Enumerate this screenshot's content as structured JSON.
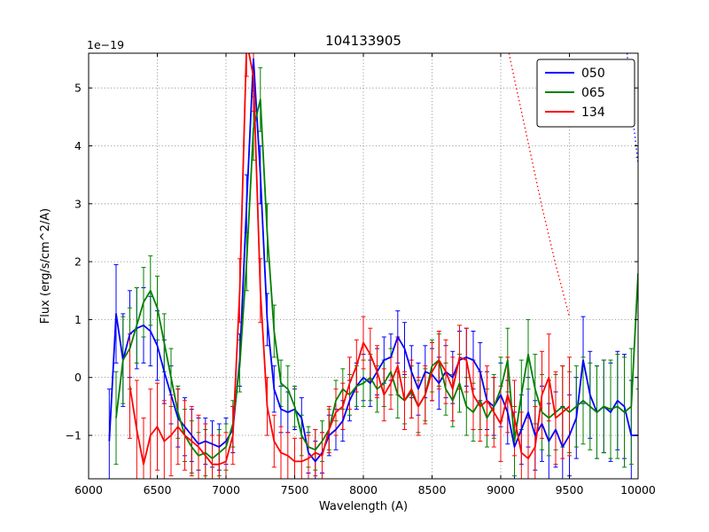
{
  "chart_data": {
    "type": "line",
    "title": "104133905",
    "xlabel": "Wavelength (A)",
    "ylabel": "Flux (erg/s/cm^2/A)",
    "offset_text": "1e−19",
    "y_scale_factor": "1e-19",
    "xlim": [
      6000,
      10000
    ],
    "ylim": [
      -1.75,
      5.6
    ],
    "grid": true,
    "legend_position": "upper right",
    "legend_entries": [
      "050",
      "065",
      "134"
    ],
    "xticks": [
      6000,
      6500,
      7000,
      7500,
      8000,
      8500,
      9000,
      9500,
      10000
    ],
    "xtick_labels": [
      "6000",
      "6500",
      "7000",
      "7500",
      "8000",
      "8500",
      "9000",
      "9500",
      "10000"
    ],
    "yticks": [
      -1,
      0,
      1,
      2,
      3,
      4,
      5
    ],
    "ytick_labels": [
      "−1",
      "0",
      "1",
      "2",
      "3",
      "4",
      "5"
    ],
    "series": [
      {
        "name": "050",
        "color": "#0000ff",
        "style": "solid",
        "in_legend": true,
        "x": [
          6150,
          6200,
          6250,
          6300,
          6350,
          6400,
          6450,
          6500,
          6550,
          6600,
          6650,
          6700,
          6750,
          6800,
          6850,
          6900,
          6950,
          7000,
          7050,
          7100,
          7150,
          7200,
          7250,
          7300,
          7350,
          7400,
          7450,
          7500,
          7550,
          7600,
          7650,
          7700,
          7750,
          7800,
          7850,
          7900,
          7950,
          8000,
          8050,
          8100,
          8150,
          8200,
          8250,
          8300,
          8350,
          8400,
          8450,
          8500,
          8550,
          8600,
          8650,
          8700,
          8750,
          8800,
          8850,
          8900,
          8950,
          9000,
          9050,
          9100,
          9150,
          9200,
          9250,
          9300,
          9350,
          9400,
          9450,
          9500,
          9550,
          9600,
          9650,
          9700,
          9750,
          9800,
          9850,
          9900,
          9950,
          10000
        ],
        "y": [
          -1.1,
          1.1,
          0.3,
          0.75,
          0.85,
          0.9,
          0.8,
          0.55,
          0.1,
          -0.3,
          -0.7,
          -0.85,
          -1.0,
          -1.15,
          -1.1,
          -1.15,
          -1.2,
          -1.1,
          -0.9,
          0.3,
          3.0,
          5.5,
          3.5,
          1.0,
          -0.2,
          -0.55,
          -0.6,
          -0.55,
          -0.7,
          -1.3,
          -1.45,
          -1.3,
          -1.0,
          -0.9,
          -0.75,
          -0.4,
          -0.15,
          0.0,
          -0.1,
          0.1,
          0.3,
          0.35,
          0.7,
          0.5,
          0.1,
          -0.2,
          0.1,
          0.05,
          -0.1,
          0.1,
          0.0,
          0.3,
          0.35,
          0.3,
          0.1,
          -0.4,
          -0.5,
          -0.3,
          -0.6,
          -1.2,
          -0.9,
          -0.6,
          -1.0,
          -0.8,
          -1.1,
          -0.9,
          -1.2,
          -1.0,
          -0.7,
          0.3,
          -0.3,
          -0.6,
          -0.5,
          -0.6,
          -0.4,
          -0.5,
          -1.0,
          -1.0
        ],
        "yerr": [
          0.9,
          0.85,
          0.8,
          0.75,
          0.7,
          0.65,
          0.6,
          0.6,
          0.55,
          0.5,
          0.5,
          0.5,
          0.45,
          0.45,
          0.4,
          0.4,
          0.4,
          0.4,
          0.4,
          0.45,
          0.5,
          0.55,
          0.5,
          0.45,
          0.4,
          0.4,
          0.35,
          0.35,
          0.35,
          0.35,
          0.35,
          0.35,
          0.35,
          0.35,
          0.35,
          0.35,
          0.4,
          0.4,
          0.4,
          0.4,
          0.4,
          0.4,
          0.45,
          0.45,
          0.45,
          0.45,
          0.45,
          0.45,
          0.45,
          0.45,
          0.45,
          0.5,
          0.5,
          0.5,
          0.5,
          0.5,
          0.5,
          0.55,
          0.55,
          0.6,
          0.6,
          0.6,
          0.6,
          0.65,
          0.65,
          0.65,
          0.7,
          0.7,
          0.7,
          0.75,
          0.75,
          0.8,
          0.8,
          0.85,
          0.85,
          0.9,
          0.95,
          1.0
        ]
      },
      {
        "name": "065",
        "color": "#008000",
        "style": "solid",
        "in_legend": true,
        "x": [
          6200,
          6250,
          6300,
          6350,
          6400,
          6450,
          6500,
          6550,
          6600,
          6650,
          6700,
          6750,
          6800,
          6850,
          6900,
          6950,
          7000,
          7050,
          7100,
          7150,
          7200,
          7250,
          7300,
          7350,
          7400,
          7450,
          7500,
          7550,
          7600,
          7650,
          7700,
          7750,
          7800,
          7850,
          7900,
          7950,
          8000,
          8050,
          8100,
          8150,
          8200,
          8250,
          8300,
          8350,
          8400,
          8450,
          8500,
          8550,
          8600,
          8650,
          8700,
          8750,
          8800,
          8850,
          8900,
          8950,
          9000,
          9050,
          9100,
          9150,
          9200,
          9250,
          9300,
          9350,
          9400,
          9450,
          9500,
          9550,
          9600,
          9650,
          9700,
          9750,
          9800,
          9850,
          9900,
          9950,
          10000
        ],
        "y": [
          -0.7,
          0.3,
          0.5,
          0.9,
          1.3,
          1.5,
          1.2,
          0.6,
          0.0,
          -0.6,
          -1.0,
          -1.2,
          -1.35,
          -1.3,
          -1.4,
          -1.3,
          -1.2,
          -0.8,
          0.2,
          2.0,
          4.3,
          4.8,
          2.5,
          0.8,
          -0.1,
          -0.2,
          -0.5,
          -1.0,
          -1.2,
          -1.25,
          -1.1,
          -0.9,
          -0.4,
          -0.2,
          -0.3,
          -0.15,
          -0.1,
          0.0,
          -0.2,
          -0.1,
          0.1,
          -0.3,
          -0.4,
          -0.25,
          -0.5,
          -0.3,
          0.2,
          0.3,
          -0.2,
          -0.4,
          -0.1,
          -0.5,
          -0.6,
          -0.4,
          -0.7,
          -0.5,
          -0.2,
          0.3,
          -1.1,
          -0.3,
          0.4,
          -0.2,
          -0.6,
          -0.7,
          -0.6,
          -0.5,
          -0.6,
          -0.5,
          -0.4,
          -0.5,
          -0.6,
          -0.5,
          -0.55,
          -0.5,
          -0.6,
          -0.5,
          1.8
        ],
        "yerr": [
          0.8,
          0.75,
          0.7,
          0.65,
          0.6,
          0.6,
          0.55,
          0.5,
          0.5,
          0.45,
          0.45,
          0.45,
          0.4,
          0.4,
          0.4,
          0.4,
          0.4,
          0.4,
          0.45,
          0.5,
          0.55,
          0.55,
          0.5,
          0.45,
          0.4,
          0.4,
          0.35,
          0.35,
          0.35,
          0.35,
          0.35,
          0.35,
          0.35,
          0.35,
          0.35,
          0.35,
          0.4,
          0.4,
          0.4,
          0.4,
          0.4,
          0.4,
          0.4,
          0.45,
          0.45,
          0.45,
          0.45,
          0.45,
          0.45,
          0.45,
          0.5,
          0.5,
          0.5,
          0.5,
          0.5,
          0.55,
          0.55,
          0.55,
          0.6,
          0.6,
          0.6,
          0.6,
          0.65,
          0.65,
          0.65,
          0.7,
          0.7,
          0.7,
          0.75,
          0.75,
          0.8,
          0.8,
          0.85,
          0.9,
          0.95,
          1.0,
          2.0
        ]
      },
      {
        "name": "134",
        "color": "#ff0000",
        "style": "solid",
        "in_legend": true,
        "x": [
          6300,
          6350,
          6400,
          6450,
          6500,
          6550,
          6600,
          6650,
          6700,
          6750,
          6800,
          6850,
          6900,
          6950,
          7000,
          7050,
          7100,
          7150,
          7200,
          7250,
          7300,
          7350,
          7400,
          7450,
          7500,
          7550,
          7600,
          7650,
          7700,
          7750,
          7800,
          7850,
          7900,
          7950,
          8000,
          8050,
          8100,
          8150,
          8200,
          8250,
          8300,
          8350,
          8400,
          8450,
          8500,
          8550,
          8600,
          8650,
          8700,
          8750,
          8800,
          8850,
          8900,
          8950,
          9000,
          9050,
          9100,
          9150,
          9200,
          9250,
          9300,
          9350,
          9400,
          9450,
          9500
        ],
        "y": [
          -0.15,
          -0.9,
          -1.5,
          -1.0,
          -0.85,
          -1.1,
          -1.0,
          -0.85,
          -1.0,
          -1.1,
          -1.2,
          -1.35,
          -1.5,
          -1.5,
          -1.45,
          -1.0,
          1.5,
          5.8,
          5.2,
          1.5,
          -0.5,
          -1.1,
          -1.3,
          -1.35,
          -1.45,
          -1.45,
          -1.4,
          -1.3,
          -1.35,
          -0.9,
          -0.6,
          -0.5,
          -0.1,
          0.2,
          0.6,
          0.4,
          0.1,
          -0.3,
          -0.1,
          0.2,
          -0.4,
          -0.2,
          -0.5,
          -0.3,
          0.1,
          0.3,
          0.1,
          -0.2,
          0.35,
          0.3,
          -0.3,
          -0.5,
          -0.4,
          -0.6,
          -0.8,
          -0.3,
          -0.7,
          -1.3,
          -1.4,
          -1.2,
          -0.3,
          0.0,
          -0.7,
          -0.6,
          -0.5
        ],
        "yerr": [
          0.9,
          0.85,
          0.8,
          0.8,
          0.75,
          0.7,
          0.7,
          0.65,
          0.6,
          0.6,
          0.55,
          0.55,
          0.5,
          0.5,
          0.5,
          0.5,
          0.55,
          0.6,
          0.6,
          0.55,
          0.5,
          0.45,
          0.45,
          0.4,
          0.4,
          0.4,
          0.4,
          0.4,
          0.4,
          0.4,
          0.4,
          0.4,
          0.45,
          0.45,
          0.45,
          0.45,
          0.45,
          0.45,
          0.45,
          0.5,
          0.5,
          0.5,
          0.5,
          0.5,
          0.5,
          0.5,
          0.55,
          0.55,
          0.55,
          0.55,
          0.6,
          0.6,
          0.6,
          0.6,
          0.65,
          0.65,
          0.65,
          0.7,
          0.7,
          0.7,
          0.75,
          0.75,
          0.8,
          0.8,
          0.85
        ]
      },
      {
        "name": "134_dotted",
        "color": "#ff0000",
        "style": "dotted",
        "in_legend": false,
        "x": [
          9060,
          9100,
          9150,
          9200,
          9250,
          9300,
          9350,
          9400,
          9450,
          9500
        ],
        "y": [
          5.6,
          5.15,
          4.6,
          4.05,
          3.5,
          2.95,
          2.45,
          1.95,
          1.5,
          1.05
        ]
      },
      {
        "name": "050_dotted",
        "color": "#0000ff",
        "style": "dotted",
        "in_legend": false,
        "x": [
          9920,
          9945,
          9970,
          10000
        ],
        "y": [
          5.6,
          4.9,
          4.3,
          3.7
        ]
      }
    ]
  }
}
